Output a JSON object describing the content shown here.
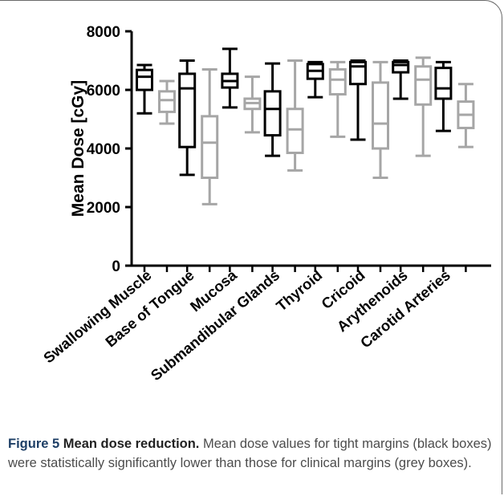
{
  "chart_data": {
    "type": "boxplot",
    "ylabel": "Mean Dose [cGy]",
    "ylim": [
      0,
      8000
    ],
    "yticks": [
      0,
      2000,
      4000,
      6000,
      8000
    ],
    "categories": [
      "Swallowing Muscle",
      "Base of Tongue",
      "Mucosa",
      "Submandibular Glands",
      "Thyroid",
      "Cricoid",
      "Arythenoids",
      "Carotid Arteries"
    ],
    "series": [
      {
        "name": "tight margins",
        "color": "#000000",
        "boxes": [
          {
            "min": 5200,
            "q1": 6000,
            "median": 6450,
            "q3": 6680,
            "max": 6850
          },
          {
            "min": 3100,
            "q1": 4050,
            "median": 6050,
            "q3": 6550,
            "max": 7000
          },
          {
            "min": 5400,
            "q1": 6080,
            "median": 6300,
            "q3": 6550,
            "max": 7400
          },
          {
            "min": 3750,
            "q1": 4450,
            "median": 5350,
            "q3": 5950,
            "max": 6900
          },
          {
            "min": 5750,
            "q1": 6380,
            "median": 6650,
            "q3": 6880,
            "max": 6950
          },
          {
            "min": 4300,
            "q1": 6200,
            "median": 6800,
            "q3": 6950,
            "max": 7000
          },
          {
            "min": 5700,
            "q1": 6600,
            "median": 6850,
            "q3": 6950,
            "max": 7000
          },
          {
            "min": 4600,
            "q1": 5700,
            "median": 6050,
            "q3": 6750,
            "max": 6950
          }
        ]
      },
      {
        "name": "clinical margins",
        "color": "#a6a6a6",
        "boxes": [
          {
            "min": 4850,
            "q1": 5250,
            "median": 5650,
            "q3": 5950,
            "max": 6300
          },
          {
            "min": 2100,
            "q1": 3000,
            "median": 4200,
            "q3": 5100,
            "max": 6700
          },
          {
            "min": 4550,
            "q1": 5350,
            "median": 5550,
            "q3": 5700,
            "max": 6450
          },
          {
            "min": 3250,
            "q1": 3850,
            "median": 4650,
            "q3": 5350,
            "max": 7000
          },
          {
            "min": 4400,
            "q1": 5850,
            "median": 6350,
            "q3": 6700,
            "max": 6950
          },
          {
            "min": 3000,
            "q1": 4000,
            "median": 4850,
            "q3": 6250,
            "max": 6950
          },
          {
            "min": 3750,
            "q1": 5500,
            "median": 6350,
            "q3": 6800,
            "max": 7100
          },
          {
            "min": 4050,
            "q1": 4700,
            "median": 5150,
            "q3": 5600,
            "max": 6200
          }
        ]
      }
    ],
    "grid": false,
    "legend": "none"
  },
  "caption": {
    "lead": "Figure 5",
    "title": "Mean dose reduction.",
    "text": "Mean dose values for tight margins (black boxes) were statistically significantly lower than those for clinical margins (grey boxes)."
  }
}
